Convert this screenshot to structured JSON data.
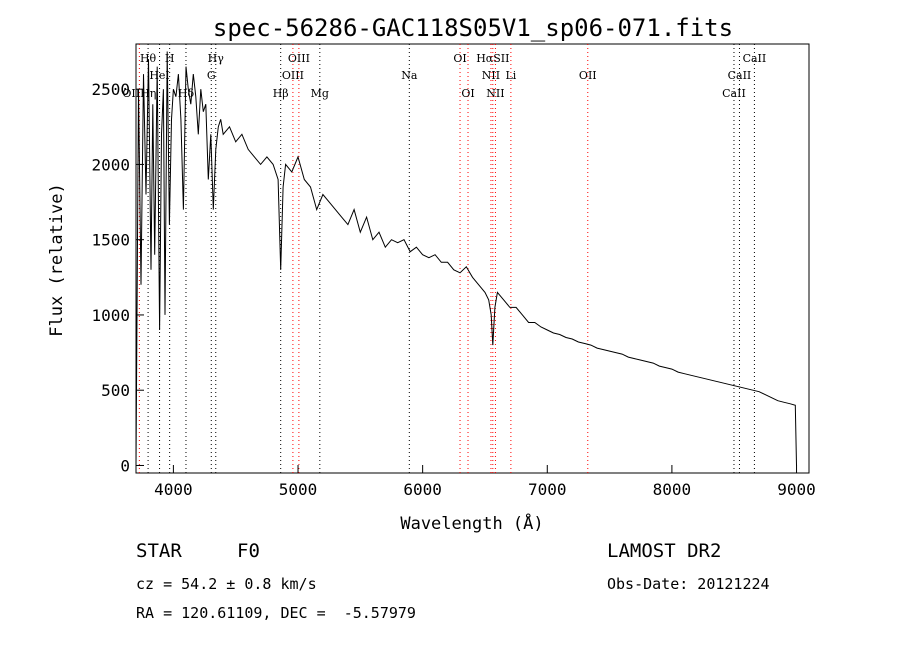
{
  "chart_data": {
    "type": "line",
    "title": "spec-56286-GAC118S05V1_sp06-071.fits",
    "xlabel": "Wavelength (Å)",
    "ylabel": "Flux (relative)",
    "xlim": [
      3700,
      9100
    ],
    "ylim": [
      -50,
      2800
    ],
    "xticks": [
      4000,
      5000,
      6000,
      7000,
      8000,
      9000
    ],
    "yticks": [
      0,
      500,
      1000,
      1500,
      2000,
      2500
    ],
    "grid": false,
    "series": [
      {
        "x": [
          3700,
          3720,
          3740,
          3760,
          3780,
          3800,
          3820,
          3835,
          3850,
          3870,
          3889,
          3905,
          3920,
          3933,
          3950,
          3968,
          3985,
          4000,
          4020,
          4040,
          4060,
          4080,
          4101,
          4120,
          4140,
          4160,
          4180,
          4200,
          4220,
          4240,
          4260,
          4280,
          4300,
          4320,
          4340,
          4360,
          4380,
          4400,
          4450,
          4500,
          4550,
          4600,
          4650,
          4700,
          4750,
          4800,
          4840,
          4861,
          4880,
          4900,
          4950,
          5000,
          5050,
          5100,
          5150,
          5200,
          5250,
          5300,
          5350,
          5400,
          5450,
          5500,
          5550,
          5600,
          5650,
          5700,
          5750,
          5800,
          5850,
          5900,
          5950,
          6000,
          6050,
          6100,
          6150,
          6200,
          6250,
          6300,
          6350,
          6400,
          6450,
          6500,
          6530,
          6550,
          6563,
          6580,
          6600,
          6650,
          6700,
          6750,
          6800,
          6850,
          6900,
          6950,
          7000,
          7050,
          7100,
          7150,
          7200,
          7250,
          7300,
          7350,
          7400,
          7450,
          7500,
          7550,
          7600,
          7650,
          7700,
          7750,
          7800,
          7850,
          7900,
          7950,
          8000,
          8050,
          8100,
          8150,
          8200,
          8250,
          8300,
          8350,
          8400,
          8450,
          8500,
          8550,
          8600,
          8650,
          8700,
          8750,
          8800,
          8850,
          8900,
          8950,
          8990,
          9000
        ],
        "values": [
          0,
          2500,
          1200,
          2600,
          1800,
          2700,
          1300,
          2400,
          1400,
          2650,
          900,
          2200,
          2500,
          1000,
          2750,
          1600,
          2300,
          2500,
          2450,
          2600,
          2300,
          1700,
          2650,
          2500,
          2400,
          2600,
          2450,
          2200,
          2500,
          2350,
          2400,
          1900,
          2200,
          1700,
          2100,
          2250,
          2300,
          2200,
          2250,
          2150,
          2200,
          2100,
          2050,
          2000,
          2050,
          2000,
          1900,
          1300,
          1850,
          2000,
          1950,
          2050,
          1900,
          1850,
          1700,
          1800,
          1750,
          1700,
          1650,
          1600,
          1700,
          1550,
          1650,
          1500,
          1550,
          1450,
          1500,
          1480,
          1500,
          1420,
          1450,
          1400,
          1380,
          1400,
          1350,
          1350,
          1300,
          1280,
          1320,
          1250,
          1200,
          1150,
          1100,
          1000,
          800,
          1050,
          1150,
          1100,
          1050,
          1050,
          1000,
          950,
          950,
          920,
          900,
          880,
          870,
          850,
          840,
          820,
          810,
          800,
          780,
          770,
          760,
          750,
          740,
          720,
          710,
          700,
          690,
          680,
          660,
          650,
          640,
          620,
          610,
          600,
          590,
          580,
          570,
          560,
          550,
          540,
          530,
          520,
          510,
          500,
          490,
          470,
          450,
          430,
          420,
          410,
          400,
          0
        ]
      }
    ],
    "lines_top": [
      {
        "label": "Hθ",
        "x": 3797
      },
      {
        "label": "H",
        "x": 3970
      },
      {
        "label": "Hγ",
        "x": 4340
      },
      {
        "label": "OIII",
        "x": 5007
      },
      {
        "label": "OI",
        "x": 6300
      },
      {
        "label": "HαSII",
        "x": 6563
      },
      {
        "label": "CaII",
        "x": 8662
      }
    ],
    "lines_mid": [
      {
        "label": "HeI",
        "x": 3889
      },
      {
        "label": "G",
        "x": 4304
      },
      {
        "label": "OIII",
        "x": 4959
      },
      {
        "label": "Na",
        "x": 5893
      },
      {
        "label": "NII",
        "x": 6548
      },
      {
        "label": "Li",
        "x": 6708
      },
      {
        "label": "OII",
        "x": 7325
      },
      {
        "label": "CaII",
        "x": 8542
      }
    ],
    "lines_low": [
      {
        "label": "OIIHη",
        "x": 3727
      },
      {
        "label": "Hδ",
        "x": 4101
      },
      {
        "label": "Hβ",
        "x": 4861
      },
      {
        "label": "Mg",
        "x": 5175
      },
      {
        "label": "OI",
        "x": 6364
      },
      {
        "label": "NII",
        "x": 6584
      },
      {
        "label": "CaII",
        "x": 8498
      }
    ],
    "marker_colors": {
      "emission": "#ff0000",
      "absorption": "#000000"
    }
  },
  "info": {
    "object_class": "STAR",
    "subclass": "F0",
    "survey": "LAMOST DR2",
    "cz": "cz = 54.2 ± 0.8 km/s",
    "obs_date": "Obs-Date: 20121224",
    "coords": "RA = 120.61109, DEC =  -5.57979"
  }
}
